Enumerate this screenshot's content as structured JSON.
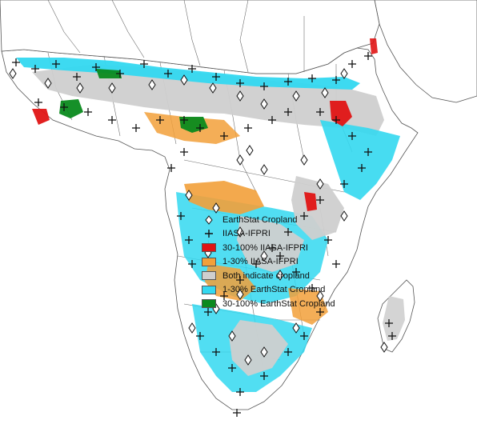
{
  "colors": {
    "ocean": "#ffffff",
    "land_base": "#ffffff",
    "border": "#6e6e6e",
    "both": "#cfcfcf",
    "earthstat_low": "#33d8f0",
    "earthstat_high": "#0a8a1e",
    "iiasa_low": "#f2a03a",
    "iiasa_high": "#e01414"
  },
  "legend": {
    "items": [
      {
        "key": "diamond",
        "icon": "diamond-outline-icon",
        "label": "EarthStat Cropland"
      },
      {
        "key": "plus",
        "icon": "plus-icon",
        "label": "IIASA-IFPRI"
      },
      {
        "key": "swatch",
        "color": "#e01414",
        "label": "30-100% IIASA-IFPRI"
      },
      {
        "key": "swatch",
        "color": "#f2a03a",
        "label": "1-30% IIASA-IFPRI"
      },
      {
        "key": "swatch",
        "color": "#cfcfcf",
        "label": "Both indicate cropland"
      },
      {
        "key": "swatch",
        "color": "#33d8f0",
        "label": "1-30% EarthStat Cropland"
      },
      {
        "key": "swatch",
        "color": "#0a8a1e",
        "label": "30-100% EarthStat Cropland"
      }
    ]
  }
}
